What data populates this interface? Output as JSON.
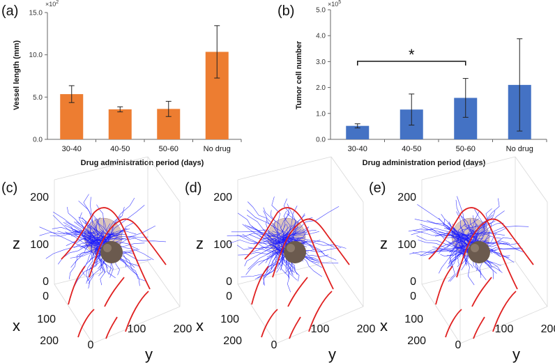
{
  "chart_data": [
    {
      "id": "a",
      "panel_label": "(a)",
      "type": "bar",
      "categories": [
        "30-40",
        "40-50",
        "50-60",
        "No drug"
      ],
      "values": [
        5.35,
        3.55,
        3.6,
        10.35
      ],
      "errors": [
        1.0,
        0.3,
        0.9,
        3.1
      ],
      "ylim": [
        0,
        15
      ],
      "yticks": [
        "0.0",
        "5.0",
        "10.0",
        "15.0"
      ],
      "ytick_values": [
        0,
        5,
        10,
        15
      ],
      "multiplier": "×10",
      "multiplier_exp": "2",
      "ylabel": "Vessel length (mm)",
      "xlabel": "Drug administration period (days)",
      "color": "#ED7D31"
    },
    {
      "id": "b",
      "panel_label": "(b)",
      "type": "bar",
      "categories": [
        "30-40",
        "40-50",
        "50-60",
        "No drug"
      ],
      "values": [
        0.52,
        1.15,
        1.6,
        2.1
      ],
      "errors": [
        0.08,
        0.6,
        0.75,
        1.78
      ],
      "ylim": [
        0,
        5
      ],
      "yticks": [
        "0.0",
        "1.0",
        "2.0",
        "3.0",
        "4.0",
        "5.0"
      ],
      "ytick_values": [
        0,
        1,
        2,
        3,
        4,
        5
      ],
      "multiplier": "×10",
      "multiplier_exp": "5",
      "ylabel": "Tumor cell number",
      "xlabel": "Drug administration period (days)",
      "color": "#4472C4",
      "significance": {
        "from": 0,
        "to": 2,
        "label": "*"
      }
    }
  ],
  "panels3d": [
    {
      "id": "c",
      "panel_label": "(c)"
    },
    {
      "id": "d",
      "panel_label": "(d)"
    },
    {
      "id": "e",
      "panel_label": "(e)"
    }
  ],
  "axes3d": {
    "z_label": "z",
    "x_label": "x",
    "y_label": "y",
    "z_ticks": [
      "0",
      "100",
      "200"
    ],
    "x_ticks": [
      "0",
      "100",
      "200"
    ],
    "y_ticks": [
      "0",
      "100",
      "200"
    ]
  },
  "colors": {
    "vessel": "#1a1aff",
    "boundary": "#e02020",
    "tumor": "#6b5a4e",
    "sphere": "#c9a898"
  }
}
